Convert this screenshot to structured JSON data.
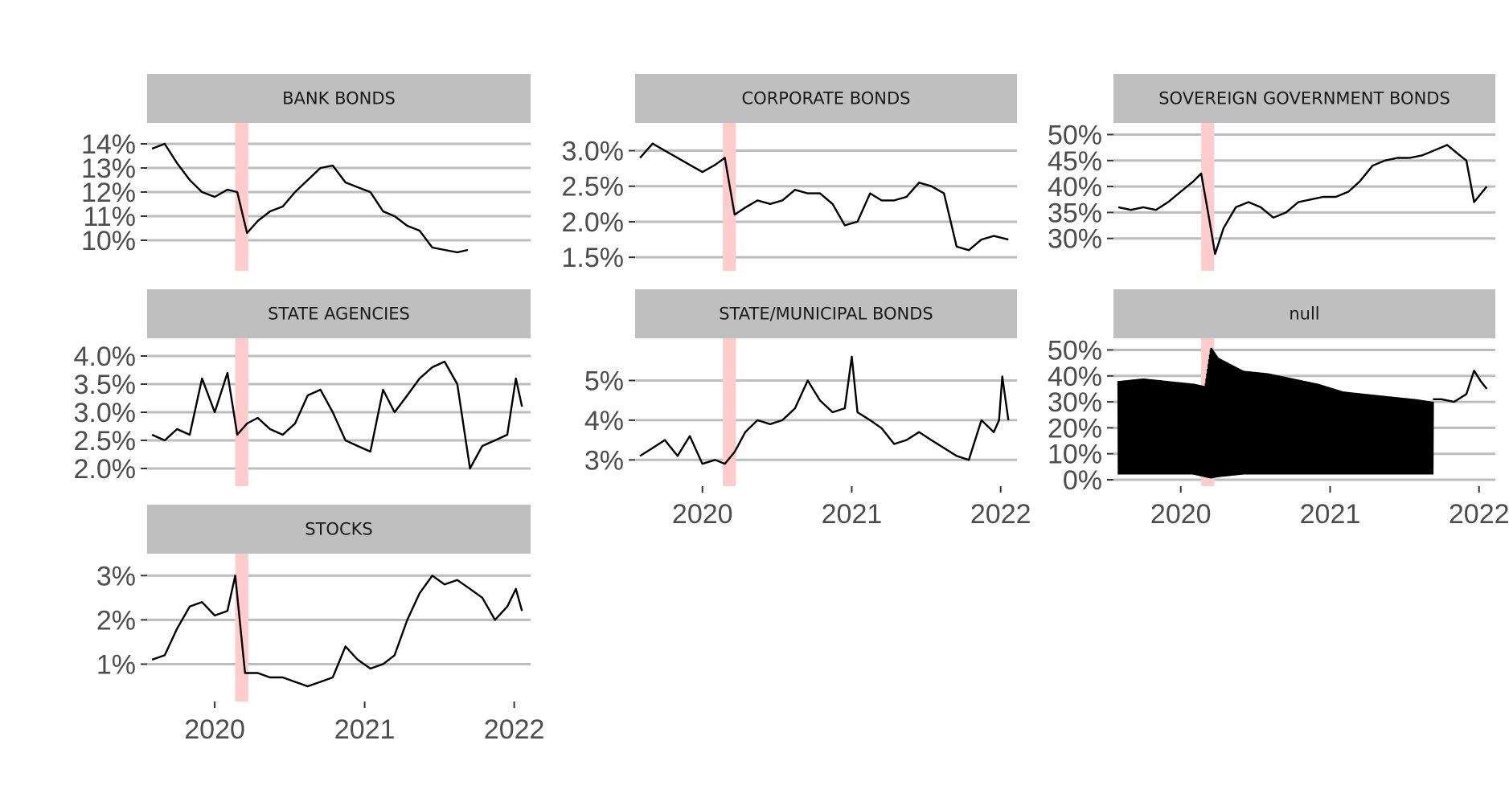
{
  "chart_data": {
    "type": "line",
    "layout": "faceted small multiples, 3 columns, free y scales, shared x axis",
    "x_axis": {
      "type": "date",
      "range": [
        "2019-07-20",
        "2022-02-10"
      ],
      "ticks": [
        "2020",
        "2021",
        "2022"
      ]
    },
    "highlight_band": {
      "x_start": "2020-02-20",
      "x_end": "2020-03-23",
      "color": "#ffcccc"
    },
    "grid": "horizontal major gridlines only",
    "panels": [
      {
        "title": "BANK BONDS",
        "ylim": [
          9.0,
          14.6
        ],
        "yticks": [
          10,
          11,
          12,
          13,
          14
        ],
        "ytick_labels": [
          "10%",
          "11%",
          "12%",
          "13%",
          "14%"
        ],
        "series": [
          {
            "x": [
              "2019-08-01",
              "2019-09-01",
              "2019-10-01",
              "2019-11-01",
              "2019-12-01",
              "2020-01-01",
              "2020-02-01",
              "2020-02-25",
              "2020-03-20",
              "2020-04-15",
              "2020-05-15",
              "2020-06-15",
              "2020-07-15",
              "2020-08-15",
              "2020-09-15",
              "2020-10-15",
              "2020-11-15",
              "2020-12-15",
              "2021-01-15",
              "2021-02-15",
              "2021-03-15",
              "2021-04-15",
              "2021-05-15",
              "2021-06-15",
              "2021-07-15",
              "2021-08-15",
              "2021-09-10"
            ],
            "values": [
              13.8,
              14.0,
              13.2,
              12.5,
              12.0,
              11.8,
              12.1,
              12.0,
              10.3,
              10.8,
              11.2,
              11.4,
              12.0,
              12.5,
              13.0,
              13.1,
              12.4,
              12.2,
              12.0,
              11.2,
              11.0,
              10.6,
              10.4,
              9.7,
              9.6,
              9.5,
              9.6
            ]
          }
        ]
      },
      {
        "title": "CORPORATE BONDS",
        "ylim": [
          1.4,
          3.3
        ],
        "yticks": [
          1.5,
          2.0,
          2.5,
          3.0
        ],
        "ytick_labels": [
          "1.5%",
          "2.0%",
          "2.5%",
          "3.0%"
        ],
        "series": [
          {
            "x": [
              "2019-08-01",
              "2019-09-01",
              "2019-10-01",
              "2019-11-01",
              "2019-12-01",
              "2020-01-01",
              "2020-02-01",
              "2020-02-25",
              "2020-03-20",
              "2020-04-15",
              "2020-05-15",
              "2020-06-15",
              "2020-07-15",
              "2020-08-15",
              "2020-09-15",
              "2020-10-15",
              "2020-11-15",
              "2020-12-15",
              "2021-01-15",
              "2021-02-15",
              "2021-03-15",
              "2021-04-15",
              "2021-05-15",
              "2021-06-15",
              "2021-07-15",
              "2021-08-15",
              "2021-09-15",
              "2021-10-15",
              "2021-11-15",
              "2021-12-15",
              "2022-01-20"
            ],
            "values": [
              2.9,
              3.1,
              3.0,
              2.9,
              2.8,
              2.7,
              2.8,
              2.9,
              2.1,
              2.2,
              2.3,
              2.25,
              2.3,
              2.45,
              2.4,
              2.4,
              2.25,
              1.95,
              2.0,
              2.4,
              2.3,
              2.3,
              2.35,
              2.55,
              2.5,
              2.4,
              1.65,
              1.6,
              1.75,
              1.8,
              1.75
            ]
          }
        ]
      },
      {
        "title": "SOVEREIGN GOVERNMENT BONDS",
        "ylim": [
          25,
          51
        ],
        "yticks": [
          30,
          35,
          40,
          45,
          50
        ],
        "ytick_labels": [
          "30%",
          "35%",
          "40%",
          "45%",
          "50%"
        ],
        "series": [
          {
            "x": [
              "2019-08-01",
              "2019-09-01",
              "2019-10-01",
              "2019-11-01",
              "2019-12-01",
              "2020-01-01",
              "2020-02-01",
              "2020-02-20",
              "2020-03-10",
              "2020-03-25",
              "2020-04-15",
              "2020-05-15",
              "2020-06-15",
              "2020-07-15",
              "2020-08-15",
              "2020-09-15",
              "2020-10-15",
              "2020-11-15",
              "2020-12-15",
              "2021-01-15",
              "2021-02-15",
              "2021-03-15",
              "2021-04-15",
              "2021-05-15",
              "2021-06-15",
              "2021-07-15",
              "2021-08-15",
              "2021-09-15",
              "2021-10-15",
              "2021-11-15",
              "2021-12-01",
              "2021-12-20",
              "2022-01-20"
            ],
            "values": [
              36,
              35.5,
              36,
              35.5,
              37,
              39,
              41,
              42.5,
              34,
              27,
              32,
              36,
              37,
              36,
              34,
              35,
              37,
              37.5,
              38,
              38,
              39,
              41,
              44,
              45,
              45.5,
              45.5,
              46,
              47,
              48,
              46,
              45,
              37,
              40
            ]
          }
        ]
      },
      {
        "title": "STATE AGENCIES",
        "ylim": [
          1.8,
          4.2
        ],
        "yticks": [
          2.0,
          2.5,
          3.0,
          3.5,
          4.0
        ],
        "ytick_labels": [
          "2.0%",
          "2.5%",
          "3.0%",
          "3.5%",
          "4.0%"
        ],
        "series": [
          {
            "x": [
              "2019-08-01",
              "2019-09-01",
              "2019-10-01",
              "2019-11-01",
              "2019-12-01",
              "2020-01-01",
              "2020-02-01",
              "2020-02-25",
              "2020-03-20",
              "2020-04-15",
              "2020-05-15",
              "2020-06-15",
              "2020-07-15",
              "2020-08-15",
              "2020-09-15",
              "2020-10-15",
              "2020-11-15",
              "2020-12-15",
              "2021-01-15",
              "2021-02-15",
              "2021-03-15",
              "2021-04-15",
              "2021-05-15",
              "2021-06-15",
              "2021-07-15",
              "2021-08-15",
              "2021-09-15",
              "2021-10-15",
              "2021-11-15",
              "2021-12-15",
              "2022-01-05",
              "2022-01-20"
            ],
            "values": [
              2.6,
              2.5,
              2.7,
              2.6,
              3.6,
              3.0,
              3.7,
              2.6,
              2.8,
              2.9,
              2.7,
              2.6,
              2.8,
              3.3,
              3.4,
              3.0,
              2.5,
              2.4,
              2.3,
              3.4,
              3.0,
              3.3,
              3.6,
              3.8,
              3.9,
              3.5,
              2.0,
              2.4,
              2.5,
              2.6,
              3.6,
              3.1
            ]
          }
        ]
      },
      {
        "title": "STATE/MUNICIPAL BONDS",
        "ylim": [
          2.5,
          5.9
        ],
        "yticks": [
          3,
          4,
          5
        ],
        "ytick_labels": [
          "3%",
          "4%",
          "5%"
        ],
        "series": [
          {
            "x": [
              "2019-08-01",
              "2019-09-01",
              "2019-10-01",
              "2019-11-01",
              "2019-12-01",
              "2020-01-01",
              "2020-02-01",
              "2020-02-25",
              "2020-03-20",
              "2020-04-15",
              "2020-05-15",
              "2020-06-15",
              "2020-07-15",
              "2020-08-15",
              "2020-09-15",
              "2020-10-15",
              "2020-11-15",
              "2020-12-15",
              "2021-01-01",
              "2021-01-15",
              "2021-02-15",
              "2021-03-15",
              "2021-04-15",
              "2021-05-15",
              "2021-06-15",
              "2021-07-15",
              "2021-08-15",
              "2021-09-15",
              "2021-10-15",
              "2021-11-15",
              "2021-12-15",
              "2021-12-28",
              "2022-01-05",
              "2022-01-20"
            ],
            "values": [
              3.1,
              3.3,
              3.5,
              3.1,
              3.6,
              2.9,
              3.0,
              2.9,
              3.2,
              3.7,
              4.0,
              3.9,
              4.0,
              4.3,
              5.0,
              4.5,
              4.2,
              4.3,
              5.6,
              4.2,
              4.0,
              3.8,
              3.4,
              3.5,
              3.7,
              3.5,
              3.3,
              3.1,
              3.0,
              4.0,
              3.7,
              4.0,
              5.1,
              4.0
            ]
          }
        ]
      },
      {
        "title": "null",
        "ylim": [
          0,
          52
        ],
        "yticks": [
          0,
          10,
          20,
          30,
          40,
          50
        ],
        "ytick_labels": [
          "0%",
          "10%",
          "20%",
          "30%",
          "40%",
          "50%"
        ],
        "series": [
          {
            "note_band": "dense oscillation between lower and upper envelope",
            "x": [
              "2019-08-01",
              "2019-10-01",
              "2019-12-01",
              "2020-02-01",
              "2020-03-01",
              "2020-03-15",
              "2020-04-01",
              "2020-06-01",
              "2020-08-01",
              "2020-10-01",
              "2020-12-01",
              "2021-02-01",
              "2021-04-01",
              "2021-06-01",
              "2021-08-01",
              "2021-09-10"
            ],
            "upper": [
              38,
              39,
              38,
              37,
              36,
              51,
              47,
              42,
              41,
              39,
              37,
              34,
              33,
              32,
              31,
              30
            ],
            "lower": [
              2,
              2,
              2,
              2,
              1,
              0.5,
              1,
              2,
              2,
              2,
              2,
              2,
              2,
              2,
              2,
              2
            ]
          },
          {
            "x": [
              "2021-09-10",
              "2021-10-01",
              "2021-11-01",
              "2021-12-01",
              "2021-12-20",
              "2022-01-05",
              "2022-01-20"
            ],
            "values": [
              31,
              31,
              30,
              33,
              42,
              38,
              35
            ]
          }
        ]
      },
      {
        "title": "STOCKS",
        "ylim": [
          0.3,
          3.35
        ],
        "yticks": [
          1,
          2,
          3
        ],
        "ytick_labels": [
          "1%",
          "2%",
          "3%"
        ],
        "series": [
          {
            "x": [
              "2019-08-01",
              "2019-09-01",
              "2019-10-01",
              "2019-11-01",
              "2019-12-01",
              "2020-01-01",
              "2020-02-01",
              "2020-02-20",
              "2020-03-15",
              "2020-04-15",
              "2020-05-15",
              "2020-06-15",
              "2020-07-15",
              "2020-08-15",
              "2020-09-15",
              "2020-10-15",
              "2020-11-15",
              "2020-12-15",
              "2021-01-15",
              "2021-02-15",
              "2021-03-15",
              "2021-04-15",
              "2021-05-15",
              "2021-06-15",
              "2021-07-15",
              "2021-08-15",
              "2021-09-15",
              "2021-10-15",
              "2021-11-15",
              "2021-12-15",
              "2022-01-05",
              "2022-01-20"
            ],
            "values": [
              1.1,
              1.2,
              1.8,
              2.3,
              2.4,
              2.1,
              2.2,
              3.0,
              0.8,
              0.8,
              0.7,
              0.7,
              0.6,
              0.5,
              0.6,
              0.7,
              1.4,
              1.1,
              0.9,
              1.0,
              1.2,
              2.0,
              2.6,
              3.0,
              2.8,
              2.9,
              2.7,
              2.5,
              2.0,
              2.3,
              2.7,
              2.2
            ]
          }
        ]
      }
    ]
  }
}
